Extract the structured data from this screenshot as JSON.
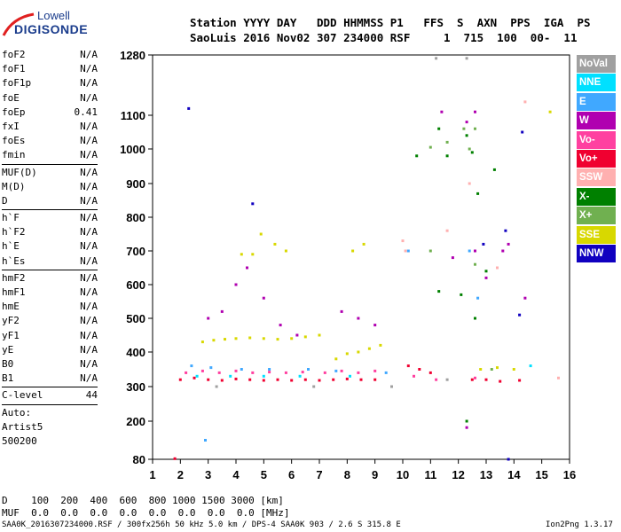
{
  "logo": {
    "line1": "Lowell",
    "line2": "DIGISONDE"
  },
  "header": {
    "line1": "Station YYYY DAY   DDD HHMMSS P1   FFS  S  AXN  PPS  IGA  PS",
    "line2": "SaoLuis 2016 Nov02 307 234000 RSF     1  715  100  00-  11"
  },
  "params_group1": [
    {
      "name": "foF2",
      "value": "N/A"
    },
    {
      "name": "foF1",
      "value": "N/A"
    },
    {
      "name": "foF1p",
      "value": "N/A"
    },
    {
      "name": "foE",
      "value": "N/A"
    },
    {
      "name": "foEp",
      "value": "0.41"
    },
    {
      "name": "fxI",
      "value": "N/A"
    },
    {
      "name": "foEs",
      "value": "N/A"
    },
    {
      "name": "fmin",
      "value": "N/A"
    }
  ],
  "params_group2": [
    {
      "name": "MUF(D)",
      "value": "N/A"
    },
    {
      "name": "M(D)",
      "value": "N/A"
    },
    {
      "name": "D",
      "value": "N/A"
    }
  ],
  "params_group3": [
    {
      "name": "h`F",
      "value": "N/A"
    },
    {
      "name": "h`F2",
      "value": "N/A"
    },
    {
      "name": "h`E",
      "value": "N/A"
    },
    {
      "name": "h`Es",
      "value": "N/A"
    }
  ],
  "params_group4": [
    {
      "name": "hmF2",
      "value": "N/A"
    },
    {
      "name": "hmF1",
      "value": "N/A"
    },
    {
      "name": "hmE",
      "value": "N/A"
    },
    {
      "name": "yF2",
      "value": "N/A"
    },
    {
      "name": "yF1",
      "value": "N/A"
    },
    {
      "name": "yE",
      "value": "N/A"
    },
    {
      "name": "B0",
      "value": "N/A"
    },
    {
      "name": "B1",
      "value": "N/A"
    }
  ],
  "clevel": {
    "name": "C-level",
    "value": "44"
  },
  "auto_lines": [
    "Auto:",
    "Artist5",
    "500200"
  ],
  "muf_table": {
    "d_line": "D    100  200  400  600  800 1000 1500 3000 [km]",
    "muf_line": "MUF  0.0  0.0  0.0  0.0  0.0  0.0  0.0  0.0 [MHz]"
  },
  "footer": {
    "left": "SAA0K_2016307234000.RSF / 300fx256h 50 kHz 5.0 km / DPS-4 SAA0K 903 / 2.6 S 315.8 E",
    "right": "Ion2Png 1.3.17"
  },
  "legend": [
    {
      "label": "NoVal",
      "color": "#a0a0a0"
    },
    {
      "label": "NNE",
      "color": "#00e0ff"
    },
    {
      "label": "E",
      "color": "#40a8ff"
    },
    {
      "label": "W",
      "color": "#b000b0"
    },
    {
      "label": "Vo-",
      "color": "#ff40a0"
    },
    {
      "label": "Vo+",
      "color": "#f00030"
    },
    {
      "label": "SSW",
      "color": "#ffb0b0"
    },
    {
      "label": "X-",
      "color": "#008000"
    },
    {
      "label": "X+",
      "color": "#70b050"
    },
    {
      "label": "SSE",
      "color": "#d8d800"
    },
    {
      "label": "NNW",
      "color": "#1000c0"
    }
  ],
  "chart_data": {
    "type": "scatter",
    "title": "",
    "xlabel": "",
    "ylabel": "",
    "xlim": [
      1,
      16
    ],
    "ylim": [
      80,
      1280
    ],
    "x_ticks": [
      1,
      2,
      3,
      4,
      5,
      6,
      7,
      8,
      9,
      10,
      11,
      12,
      13,
      14,
      15,
      16
    ],
    "y_ticks": [
      80,
      200,
      300,
      400,
      500,
      600,
      700,
      800,
      900,
      1000,
      1100,
      1280
    ],
    "y_scale": "nonlinear",
    "grid": false,
    "series": [
      {
        "name": "SSE",
        "color": "#d8d800",
        "points": [
          [
            2.8,
            430
          ],
          [
            3.2,
            435
          ],
          [
            3.6,
            438
          ],
          [
            4.0,
            440
          ],
          [
            4.5,
            442
          ],
          [
            5.0,
            440
          ],
          [
            5.5,
            438
          ],
          [
            6.0,
            440
          ],
          [
            6.5,
            445
          ],
          [
            7.0,
            450
          ],
          [
            7.6,
            380
          ],
          [
            8.0,
            395
          ],
          [
            8.4,
            400
          ],
          [
            8.8,
            410
          ],
          [
            9.2,
            420
          ],
          [
            4.2,
            690
          ],
          [
            4.6,
            690
          ],
          [
            4.9,
            750
          ],
          [
            5.4,
            720
          ],
          [
            5.8,
            700
          ],
          [
            8.2,
            700
          ],
          [
            8.6,
            720
          ],
          [
            12.8,
            350
          ],
          [
            13.4,
            355
          ],
          [
            14.0,
            350
          ],
          [
            15.3,
            1110
          ]
        ]
      },
      {
        "name": "Vo+",
        "color": "#f00030",
        "points": [
          [
            2.0,
            320
          ],
          [
            2.5,
            325
          ],
          [
            3.0,
            320
          ],
          [
            3.5,
            318
          ],
          [
            4.0,
            322
          ],
          [
            4.5,
            320
          ],
          [
            5.0,
            318
          ],
          [
            5.5,
            320
          ],
          [
            6.0,
            318
          ],
          [
            6.5,
            320
          ],
          [
            7.0,
            318
          ],
          [
            7.5,
            320
          ],
          [
            8.0,
            322
          ],
          [
            8.5,
            320
          ],
          [
            9.0,
            320
          ],
          [
            10.2,
            360
          ],
          [
            10.6,
            350
          ],
          [
            11.0,
            340
          ],
          [
            12.5,
            320
          ],
          [
            13.0,
            320
          ],
          [
            13.5,
            315
          ],
          [
            14.2,
            318
          ],
          [
            1.8,
            82
          ]
        ]
      },
      {
        "name": "Vo-",
        "color": "#ff40a0",
        "points": [
          [
            2.2,
            340
          ],
          [
            2.8,
            345
          ],
          [
            3.4,
            340
          ],
          [
            4.0,
            345
          ],
          [
            4.6,
            340
          ],
          [
            5.2,
            342
          ],
          [
            5.8,
            340
          ],
          [
            6.4,
            342
          ],
          [
            7.2,
            340
          ],
          [
            7.8,
            345
          ],
          [
            8.4,
            340
          ],
          [
            9.0,
            345
          ],
          [
            10.4,
            330
          ],
          [
            11.2,
            320
          ],
          [
            12.6,
            325
          ]
        ]
      },
      {
        "name": "W",
        "color": "#b000b0",
        "points": [
          [
            3.0,
            500
          ],
          [
            3.5,
            520
          ],
          [
            4.0,
            600
          ],
          [
            4.4,
            650
          ],
          [
            5.0,
            560
          ],
          [
            5.6,
            480
          ],
          [
            6.2,
            450
          ],
          [
            7.8,
            520
          ],
          [
            8.4,
            500
          ],
          [
            9.0,
            480
          ],
          [
            11.4,
            1110
          ],
          [
            12.3,
            1080
          ],
          [
            12.6,
            1110
          ],
          [
            11.8,
            680
          ],
          [
            12.6,
            700
          ],
          [
            13.0,
            620
          ],
          [
            13.6,
            700
          ],
          [
            13.8,
            720
          ],
          [
            14.4,
            560
          ],
          [
            12.3,
            180
          ]
        ]
      },
      {
        "name": "X-",
        "color": "#008000",
        "points": [
          [
            10.5,
            980
          ],
          [
            11.3,
            1060
          ],
          [
            11.6,
            980
          ],
          [
            12.3,
            1040
          ],
          [
            12.5,
            990
          ],
          [
            12.7,
            870
          ],
          [
            13.3,
            940
          ],
          [
            11.3,
            580
          ],
          [
            12.1,
            570
          ],
          [
            12.6,
            500
          ],
          [
            13.0,
            640
          ],
          [
            12.3,
            200
          ]
        ]
      },
      {
        "name": "X+",
        "color": "#70b050",
        "points": [
          [
            11.0,
            1005
          ],
          [
            11.6,
            1020
          ],
          [
            12.2,
            1060
          ],
          [
            12.6,
            1060
          ],
          [
            12.4,
            1000
          ],
          [
            11.0,
            700
          ],
          [
            12.6,
            660
          ],
          [
            13.2,
            350
          ]
        ]
      },
      {
        "name": "E",
        "color": "#40a8ff",
        "points": [
          [
            2.4,
            360
          ],
          [
            3.1,
            355
          ],
          [
            4.2,
            350
          ],
          [
            5.2,
            350
          ],
          [
            6.6,
            350
          ],
          [
            7.6,
            345
          ],
          [
            9.4,
            340
          ],
          [
            10.2,
            700
          ],
          [
            12.4,
            700
          ],
          [
            12.7,
            560
          ],
          [
            2.9,
            140
          ]
        ]
      },
      {
        "name": "NNE",
        "color": "#00e0ff",
        "points": [
          [
            2.6,
            330
          ],
          [
            3.8,
            330
          ],
          [
            5.0,
            330
          ],
          [
            6.3,
            330
          ],
          [
            8.1,
            330
          ],
          [
            14.6,
            360
          ]
        ]
      },
      {
        "name": "SSW",
        "color": "#ffb0b0",
        "points": [
          [
            10.0,
            730
          ],
          [
            10.1,
            700
          ],
          [
            11.6,
            760
          ],
          [
            12.4,
            900
          ],
          [
            13.4,
            650
          ],
          [
            14.4,
            1140
          ],
          [
            15.6,
            325
          ]
        ]
      },
      {
        "name": "NNW",
        "color": "#1000c0",
        "points": [
          [
            2.3,
            1120
          ],
          [
            4.6,
            840
          ],
          [
            12.9,
            720
          ],
          [
            13.7,
            760
          ],
          [
            14.2,
            510
          ],
          [
            14.3,
            1050
          ],
          [
            13.8,
            80
          ]
        ]
      },
      {
        "name": "NoVal",
        "color": "#a0a0a0",
        "points": [
          [
            3.3,
            300
          ],
          [
            6.8,
            300
          ],
          [
            9.6,
            300
          ],
          [
            11.6,
            320
          ],
          [
            11.2,
            1270
          ],
          [
            12.3,
            1270
          ]
        ]
      }
    ]
  }
}
